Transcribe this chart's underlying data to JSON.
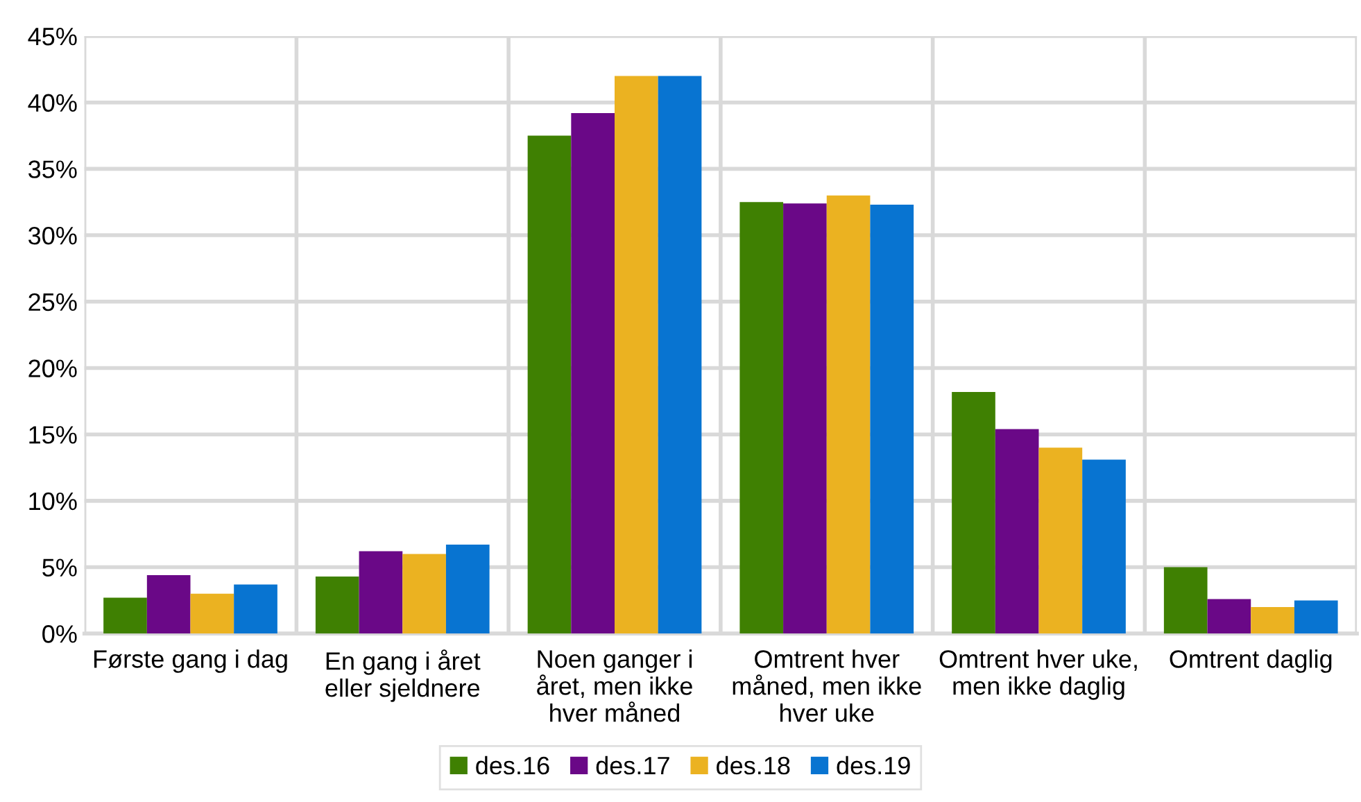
{
  "chart_data": {
    "type": "bar",
    "categories": [
      "Første gang i dag",
      "En gang i året eller sjeldnere",
      "Noen ganger i året, men ikke hver måned",
      "Omtrent hver måned, men ikke hver uke",
      "Omtrent hver uke, men ikke daglig",
      "Omtrent daglig"
    ],
    "series": [
      {
        "name": "des.16",
        "color": "#3f8002",
        "values": [
          2.7,
          4.3,
          37.5,
          32.5,
          18.2,
          5.0
        ]
      },
      {
        "name": "des.17",
        "color": "#6a0887",
        "values": [
          4.4,
          6.2,
          39.2,
          32.4,
          15.4,
          2.6
        ]
      },
      {
        "name": "des.18",
        "color": "#ebb221",
        "values": [
          3.0,
          6.0,
          42.0,
          33.0,
          14.0,
          2.0
        ]
      },
      {
        "name": "des.19",
        "color": "#0874d1",
        "values": [
          3.7,
          6.7,
          42.0,
          32.3,
          13.1,
          2.5
        ]
      }
    ],
    "ylim": [
      0,
      45
    ],
    "yticks": [
      {
        "value": 0,
        "label": "0%"
      },
      {
        "value": 5,
        "label": "5%"
      },
      {
        "value": 10,
        "label": "10%"
      },
      {
        "value": 15,
        "label": "15%"
      },
      {
        "value": 20,
        "label": "20%"
      },
      {
        "value": 25,
        "label": "25%"
      },
      {
        "value": 30,
        "label": "30%"
      },
      {
        "value": 35,
        "label": "35%"
      },
      {
        "value": 40,
        "label": "40%"
      },
      {
        "value": 45,
        "label": "45%"
      }
    ],
    "grid": true,
    "legend": "bottom"
  }
}
